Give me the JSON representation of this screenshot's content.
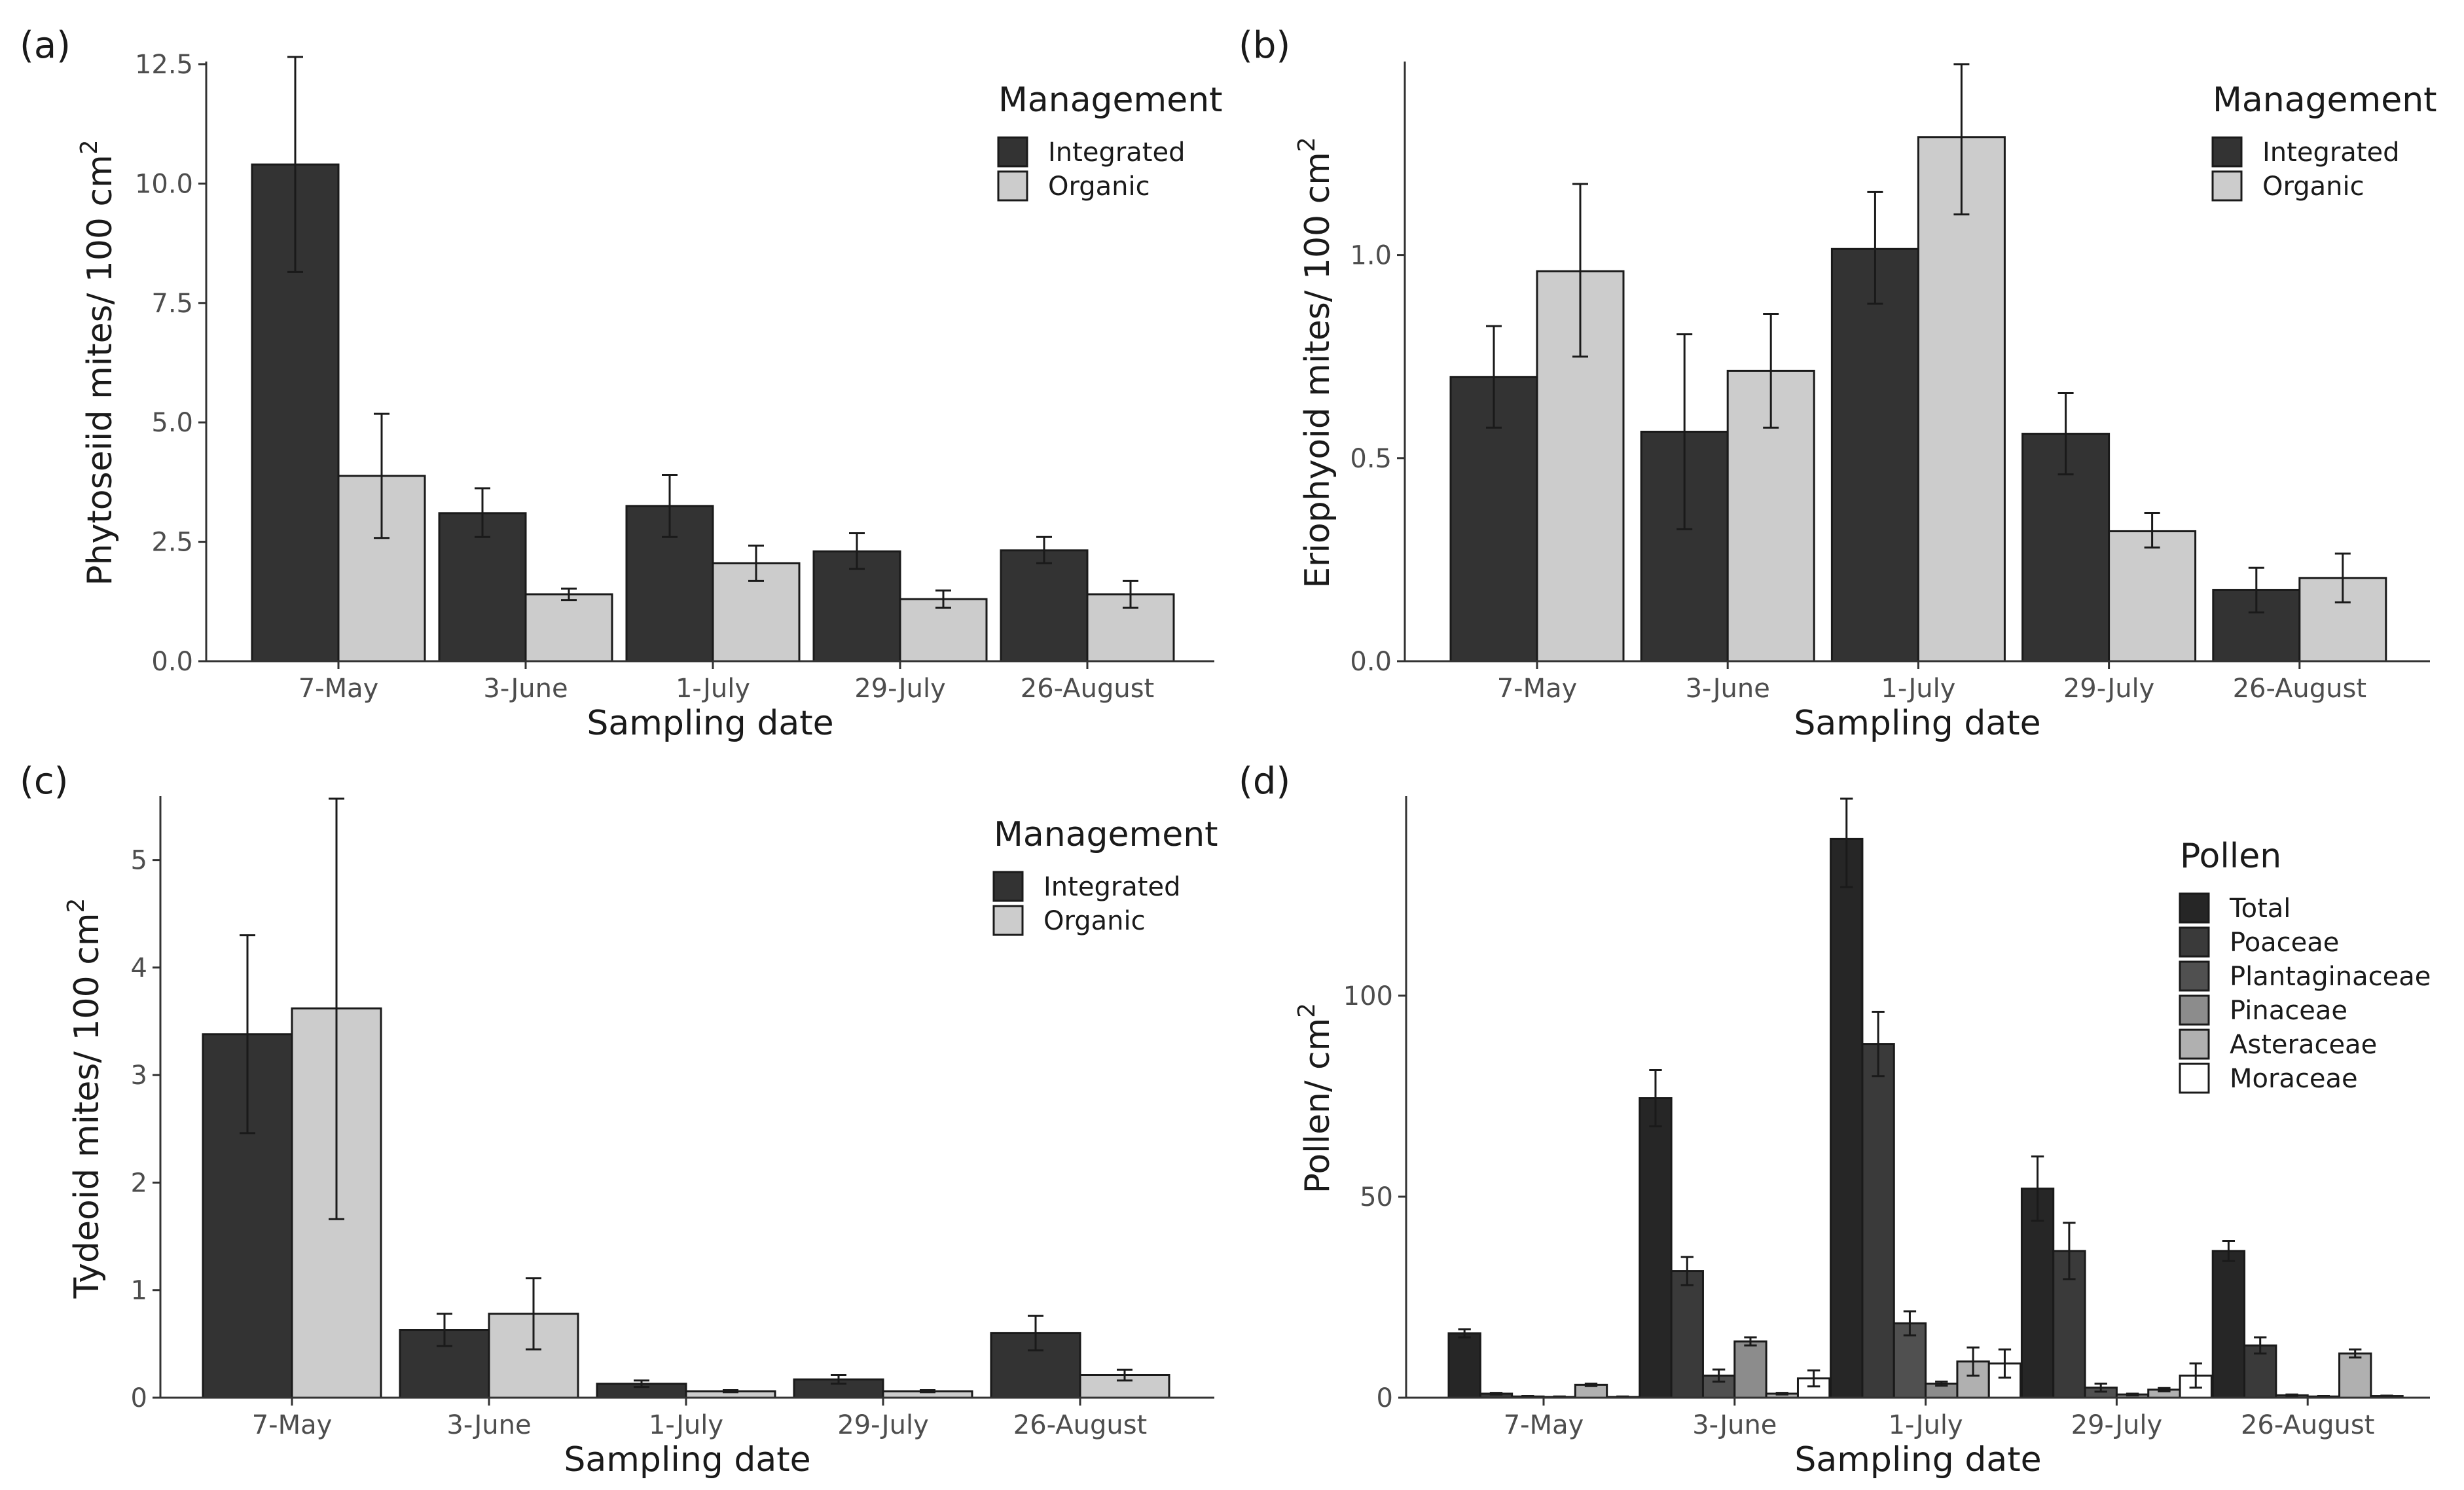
{
  "colors": {
    "integrated": "#333333",
    "organic": "#cccccc",
    "pollen": [
      "#262626",
      "#3a3a3a",
      "#505050",
      "#8c8c8c",
      "#b0b0b0",
      "#ffffff"
    ]
  },
  "chart_data": [
    {
      "panel": "(a)",
      "type": "bar",
      "categories": [
        "7-May",
        "3-June",
        "1-July",
        "29-July",
        "26-August"
      ],
      "xlabel": "Sampling date",
      "ylabel": "Phytoseiid mites/ 100  cm",
      "ylabel_sup": "2",
      "ylim": [
        0,
        12.5
      ],
      "yticks": [
        0,
        2.5,
        5,
        7.5,
        10,
        12.5
      ],
      "ytick_labels": [
        "0.0",
        "2.5",
        "5.0",
        "7.5",
        "10.0",
        "12.5"
      ],
      "legend_title": "Management",
      "series": [
        {
          "name": "Integrated",
          "values": [
            10.4,
            3.1,
            3.25,
            2.3,
            2.32
          ],
          "err_low": [
            8.15,
            2.6,
            2.6,
            1.93,
            2.05
          ],
          "err_high": [
            12.65,
            3.62,
            3.9,
            2.68,
            2.6
          ]
        },
        {
          "name": "Organic",
          "values": [
            3.88,
            1.4,
            2.05,
            1.3,
            1.4
          ],
          "err_low": [
            2.58,
            1.28,
            1.68,
            1.12,
            1.12
          ],
          "err_high": [
            5.18,
            1.52,
            2.42,
            1.48,
            1.68
          ]
        }
      ]
    },
    {
      "panel": "(b)",
      "type": "bar",
      "categories": [
        "7-May",
        "3-June",
        "1-July",
        "29-July",
        "26-August"
      ],
      "xlabel": "Sampling date",
      "ylabel": "Eriophyoid mites/ 100  cm",
      "ylabel_sup": "2",
      "ylim": [
        0,
        1.47
      ],
      "yticks": [
        0,
        0.5,
        1.0
      ],
      "ytick_labels": [
        "0.0",
        "0.5",
        "1.0"
      ],
      "legend_title": "Management",
      "series": [
        {
          "name": "Integrated",
          "values": [
            0.7,
            0.565,
            1.015,
            0.56,
            0.175
          ],
          "err_low": [
            0.575,
            0.325,
            0.88,
            0.46,
            0.12
          ],
          "err_high": [
            0.825,
            0.805,
            1.155,
            0.66,
            0.23
          ]
        },
        {
          "name": "Organic",
          "values": [
            0.96,
            0.715,
            1.29,
            0.32,
            0.205
          ],
          "err_low": [
            0.75,
            0.575,
            1.1,
            0.28,
            0.145
          ],
          "err_high": [
            1.175,
            0.855,
            1.47,
            0.365,
            0.265
          ]
        }
      ]
    },
    {
      "panel": "(c)",
      "type": "bar",
      "categories": [
        "7-May",
        "3-June",
        "1-July",
        "29-July",
        "26-August"
      ],
      "xlabel": "Sampling date",
      "ylabel": "Tydeoid mites/ 100  cm",
      "ylabel_sup": "2",
      "ylim": [
        0,
        5.57
      ],
      "yticks": [
        0,
        1,
        2,
        3,
        4,
        5
      ],
      "ytick_labels": [
        "0",
        "1",
        "2",
        "3",
        "4",
        "5"
      ],
      "legend_title": "Management",
      "series": [
        {
          "name": "Integrated",
          "values": [
            3.38,
            0.63,
            0.13,
            0.17,
            0.6
          ],
          "err_low": [
            2.46,
            0.48,
            0.1,
            0.13,
            0.44
          ],
          "err_high": [
            4.3,
            0.78,
            0.16,
            0.21,
            0.76
          ]
        },
        {
          "name": "Organic",
          "values": [
            3.62,
            0.78,
            0.06,
            0.06,
            0.21
          ],
          "err_low": [
            1.66,
            0.45,
            0.05,
            0.05,
            0.16
          ],
          "err_high": [
            5.57,
            1.11,
            0.07,
            0.07,
            0.26
          ]
        }
      ]
    },
    {
      "panel": "(d)",
      "type": "bar",
      "categories": [
        "7-May",
        "3-June",
        "1-July",
        "29-July",
        "26-August"
      ],
      "xlabel": "Sampling date",
      "ylabel": "Pollen/ cm",
      "ylabel_sup": "2",
      "ylim": [
        0,
        149
      ],
      "yticks": [
        0,
        50,
        100
      ],
      "ytick_labels": [
        "0",
        "50",
        "100"
      ],
      "legend_title": "Pollen",
      "series": [
        {
          "name": "Total",
          "values": [
            16,
            74.5,
            139,
            52,
            36.5
          ],
          "err_low": [
            15,
            67.5,
            127,
            44,
            34
          ],
          "err_high": [
            17,
            81.5,
            149,
            60,
            39
          ]
        },
        {
          "name": "Poaceae",
          "values": [
            1,
            31.5,
            88,
            36.5,
            13
          ],
          "err_low": [
            0.8,
            28,
            80,
            29.5,
            11
          ],
          "err_high": [
            1.2,
            35,
            96,
            43.5,
            15
          ]
        },
        {
          "name": "Plantaginaceae",
          "values": [
            0.3,
            5.5,
            18.5,
            2.5,
            0.6
          ],
          "err_low": [
            0.2,
            4,
            15.5,
            1.5,
            0.4
          ],
          "err_high": [
            0.4,
            7,
            21.5,
            3.5,
            0.8
          ]
        },
        {
          "name": "Pinaceae",
          "values": [
            0.2,
            14,
            3.5,
            0.8,
            0.3
          ],
          "err_low": [
            0.1,
            13,
            3,
            0.6,
            0.2
          ],
          "err_high": [
            0.3,
            15,
            4,
            1,
            0.4
          ]
        },
        {
          "name": "Asteraceae",
          "values": [
            3.2,
            1,
            9,
            2,
            11
          ],
          "err_low": [
            2.9,
            0.8,
            5.5,
            1.6,
            10
          ],
          "err_high": [
            3.5,
            1.2,
            12.5,
            2.4,
            12
          ]
        },
        {
          "name": "Moraceae",
          "values": [
            0.2,
            4.8,
            8.5,
            5.5,
            0.4
          ],
          "err_low": [
            0.1,
            2.8,
            5,
            2.5,
            0.3
          ],
          "err_high": [
            0.3,
            6.8,
            12,
            8.5,
            0.5
          ]
        }
      ]
    }
  ]
}
